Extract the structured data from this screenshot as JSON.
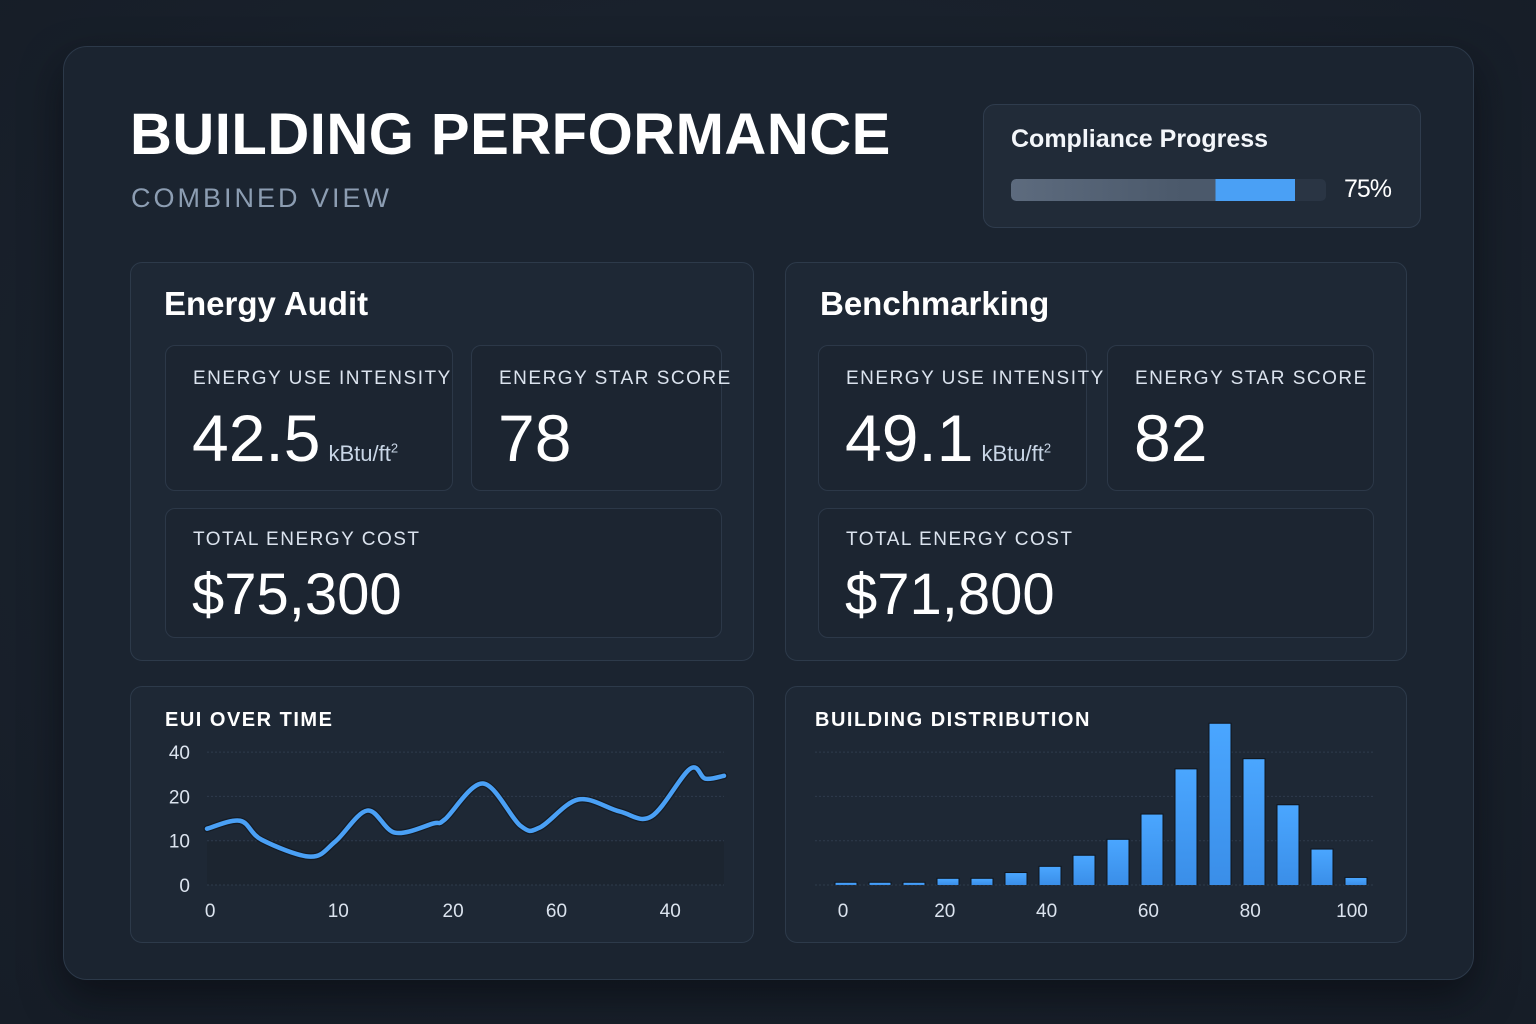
{
  "header": {
    "title": "BUILDING PERFORMANCE",
    "subtitle": "COMBINED VIEW"
  },
  "compliance": {
    "label": "Compliance Progress",
    "percent": 75,
    "percent_label": "75%",
    "colors": {
      "accent": "#4aa0f5",
      "track": "#2a3544"
    }
  },
  "energy_audit": {
    "title": "Energy Audit",
    "eui": {
      "label": "ENERGY USE INTENSITY",
      "value": "42.5",
      "unit": "kBtu/ft",
      "unit_sup": "2"
    },
    "star": {
      "label": "ENERGY STAR SCORE",
      "value": "78"
    },
    "cost": {
      "label": "TOTAL ENERGY COST",
      "value": "$75,300"
    }
  },
  "benchmarking": {
    "title": "Benchmarking",
    "eui": {
      "label": "ENERGY USE INTENSITY",
      "value": "49.1",
      "unit": "kBtu/ft",
      "unit_sup": "2"
    },
    "star": {
      "label": "ENERGY STAR SCORE",
      "value": "82"
    },
    "cost": {
      "label": "TOTAL ENERGY COST",
      "value": "$71,800"
    }
  },
  "chart_data": [
    {
      "type": "line",
      "title": "EUI OVER TIME",
      "xlabel": "",
      "ylabel": "",
      "grid": true,
      "color": "#4aa0f5",
      "y_ticks": [
        {
          "label": "0",
          "value": 0
        },
        {
          "label": "10",
          "value": 10
        },
        {
          "label": "20",
          "value": 20
        },
        {
          "label": "40",
          "value": 40
        }
      ],
      "x_domain": [
        0,
        50
      ],
      "x_ticks": [
        {
          "label": "0",
          "position": 0.3
        },
        {
          "label": "10",
          "position": 12.7
        },
        {
          "label": "20",
          "position": 23.8
        },
        {
          "label": "60",
          "position": 33.8
        },
        {
          "label": "40",
          "position": 44.8
        }
      ],
      "series": [
        {
          "name": "EUI",
          "x": [
            0,
            3.2,
            5.3,
            10.0,
            12.4,
            15.5,
            18.2,
            21.9,
            23.0,
            26.7,
            30.3,
            32.2,
            35.9,
            39.9,
            43.0,
            46.7,
            48.2,
            50
          ],
          "values": [
            12.7,
            14.5,
            10.2,
            6.4,
            9.8,
            16.8,
            11.8,
            13.9,
            14.8,
            25.8,
            13.4,
            13.0,
            19.3,
            16.6,
            15.5,
            32.4,
            28.0,
            29.3
          ]
        }
      ]
    },
    {
      "type": "bar",
      "title": "BUILDING DISTRIBUTION",
      "xlabel": "",
      "ylabel": "",
      "grid": true,
      "color": "#3a8ee8",
      "x_tick_labels": [
        "0",
        "20",
        "40",
        "60",
        "80",
        "100"
      ],
      "ylim": [
        0,
        40
      ],
      "y_grid_step": 10,
      "values": [
        0.5,
        0.5,
        0.5,
        1.4,
        1.4,
        2.7,
        4.1,
        6.6,
        10.2,
        15.9,
        26.1,
        36.4,
        28.4,
        18.0,
        8.0,
        1.6
      ]
    }
  ]
}
